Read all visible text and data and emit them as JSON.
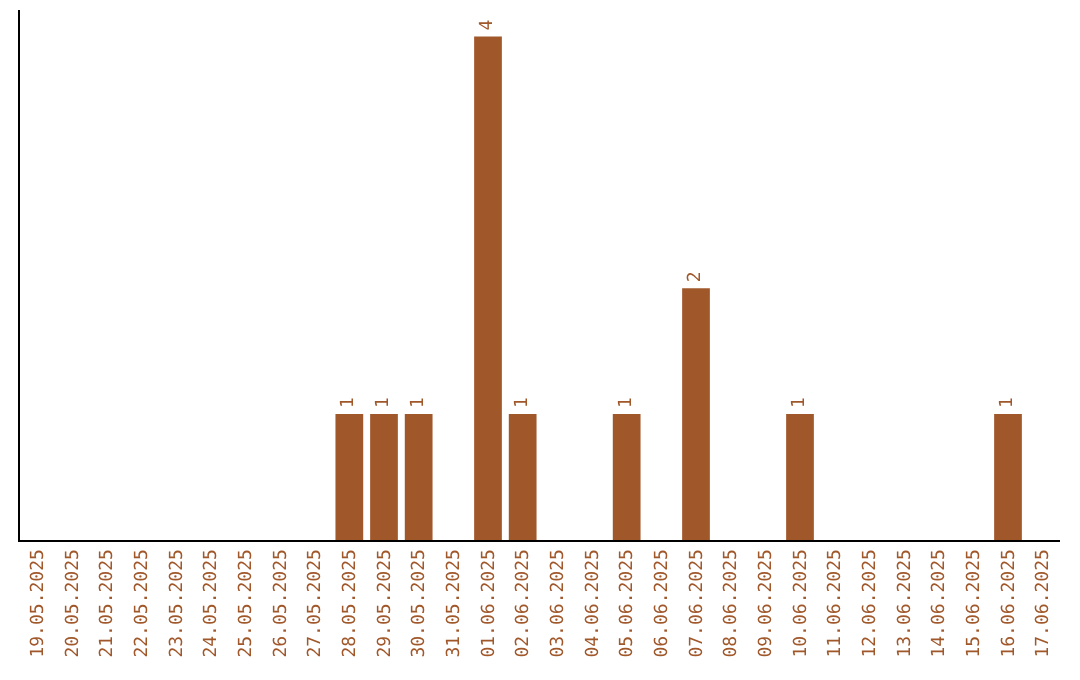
{
  "chart_data": {
    "type": "bar",
    "categories": [
      "19.05.2025",
      "20.05.2025",
      "21.05.2025",
      "22.05.2025",
      "23.05.2025",
      "24.05.2025",
      "25.05.2025",
      "26.05.2025",
      "27.05.2025",
      "28.05.2025",
      "29.05.2025",
      "30.05.2025",
      "31.05.2025",
      "01.06.2025",
      "02.06.2025",
      "03.06.2025",
      "04.06.2025",
      "05.06.2025",
      "06.06.2025",
      "07.06.2025",
      "08.06.2025",
      "09.06.2025",
      "10.06.2025",
      "11.06.2025",
      "12.06.2025",
      "13.06.2025",
      "14.06.2025",
      "15.06.2025",
      "16.06.2025",
      "17.06.2025"
    ],
    "values": [
      0,
      0,
      0,
      0,
      0,
      0,
      0,
      0,
      0,
      1,
      1,
      1,
      0,
      4,
      1,
      0,
      0,
      1,
      0,
      2,
      0,
      0,
      1,
      0,
      0,
      0,
      0,
      0,
      1,
      0
    ],
    "value_labels": [
      null,
      null,
      null,
      null,
      null,
      null,
      null,
      null,
      null,
      "1",
      "1",
      "1",
      null,
      "4",
      "1",
      null,
      null,
      "1",
      null,
      "2",
      null,
      null,
      "1",
      null,
      null,
      null,
      null,
      null,
      "1",
      null
    ],
    "color": "#a0572a",
    "tick_labels": "x",
    "legend": false
  }
}
